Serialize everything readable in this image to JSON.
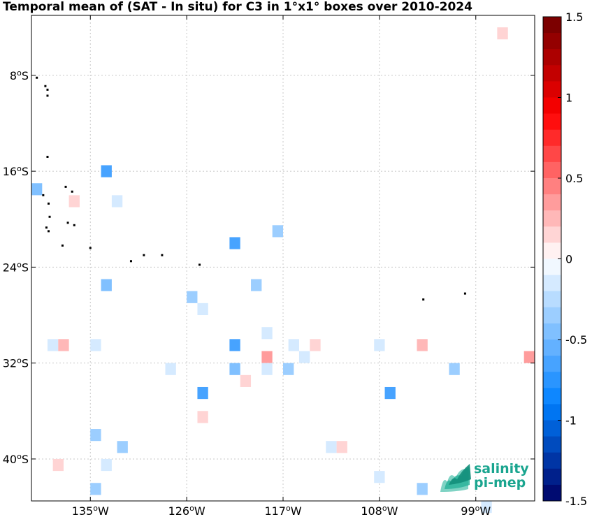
{
  "chart_data": {
    "type": "heatmap",
    "title": "Temporal mean of (SAT - In situ) for C3 in 1°x1° boxes over 2010-2024",
    "lon_range": [
      -140.5,
      -93.5
    ],
    "lat_range": [
      -43.5,
      -3.0
    ],
    "lon_ticks": [
      {
        "value": -135,
        "deg": "135",
        "dir": "W"
      },
      {
        "value": -126,
        "deg": "126",
        "dir": "W"
      },
      {
        "value": -117,
        "deg": "117",
        "dir": "W"
      },
      {
        "value": -108,
        "deg": "108",
        "dir": "W"
      },
      {
        "value": -99,
        "deg": "99",
        "dir": "W"
      }
    ],
    "lat_ticks": [
      {
        "value": -8,
        "deg": "8",
        "dir": "S"
      },
      {
        "value": -16,
        "deg": "16",
        "dir": "S"
      },
      {
        "value": -24,
        "deg": "24",
        "dir": "S"
      },
      {
        "value": -32,
        "deg": "32",
        "dir": "S"
      },
      {
        "value": -40,
        "deg": "40",
        "dir": "S"
      }
    ],
    "grid": true,
    "colorbar": {
      "min": -1.5,
      "max": 1.5,
      "levels": 30,
      "ticks": [
        {
          "value": 1.5,
          "label": "1.5"
        },
        {
          "value": 1.0,
          "label": "1"
        },
        {
          "value": 0.5,
          "label": "0.5"
        },
        {
          "value": 0.0,
          "label": "0"
        },
        {
          "value": -0.5,
          "label": "-0.5"
        },
        {
          "value": -1.0,
          "label": "-1"
        },
        {
          "value": -1.5,
          "label": "-1.5"
        }
      ]
    },
    "cells": [
      {
        "lon": -96.5,
        "lat": -4.5,
        "value": 0.15
      },
      {
        "lon": -140.0,
        "lat": -17.5,
        "value": -0.45
      },
      {
        "lon": -133.5,
        "lat": -16.0,
        "value": -0.65
      },
      {
        "lon": -136.5,
        "lat": -18.5,
        "value": 0.15
      },
      {
        "lon": -132.5,
        "lat": -18.5,
        "value": -0.1
      },
      {
        "lon": -117.5,
        "lat": -21.0,
        "value": -0.35
      },
      {
        "lon": -121.5,
        "lat": -22.0,
        "value": -0.65
      },
      {
        "lon": -133.5,
        "lat": -25.5,
        "value": -0.45
      },
      {
        "lon": -119.5,
        "lat": -25.5,
        "value": -0.35
      },
      {
        "lon": -125.5,
        "lat": -26.5,
        "value": -0.35
      },
      {
        "lon": -124.5,
        "lat": -27.5,
        "value": -0.1
      },
      {
        "lon": -118.5,
        "lat": -29.5,
        "value": -0.2
      },
      {
        "lon": -138.5,
        "lat": -30.5,
        "value": -0.1
      },
      {
        "lon": -137.5,
        "lat": -30.5,
        "value": 0.25
      },
      {
        "lon": -134.5,
        "lat": -30.5,
        "value": -0.2
      },
      {
        "lon": -121.5,
        "lat": -30.5,
        "value": -0.65
      },
      {
        "lon": -116.0,
        "lat": -30.5,
        "value": -0.1
      },
      {
        "lon": -114.0,
        "lat": -30.5,
        "value": 0.15
      },
      {
        "lon": -108.0,
        "lat": -30.5,
        "value": -0.2
      },
      {
        "lon": -104.0,
        "lat": -30.5,
        "value": 0.25
      },
      {
        "lon": -118.5,
        "lat": -31.5,
        "value": 0.3
      },
      {
        "lon": -115.0,
        "lat": -31.5,
        "value": -0.1
      },
      {
        "lon": -94.0,
        "lat": -31.5,
        "value": 0.3
      },
      {
        "lon": -127.5,
        "lat": -32.5,
        "value": -0.2
      },
      {
        "lon": -121.5,
        "lat": -32.5,
        "value": -0.45
      },
      {
        "lon": -118.5,
        "lat": -32.5,
        "value": -0.1
      },
      {
        "lon": -116.5,
        "lat": -32.5,
        "value": -0.3
      },
      {
        "lon": -101.0,
        "lat": -32.5,
        "value": -0.35
      },
      {
        "lon": -120.5,
        "lat": -33.5,
        "value": 0.15
      },
      {
        "lon": -124.5,
        "lat": -34.5,
        "value": -0.65
      },
      {
        "lon": -107.0,
        "lat": -34.5,
        "value": -0.65
      },
      {
        "lon": -124.5,
        "lat": -36.5,
        "value": 0.15
      },
      {
        "lon": -134.5,
        "lat": -38.0,
        "value": -0.35
      },
      {
        "lon": -132.0,
        "lat": -39.0,
        "value": -0.3
      },
      {
        "lon": -112.5,
        "lat": -39.0,
        "value": -0.1
      },
      {
        "lon": -111.5,
        "lat": -39.0,
        "value": 0.15
      },
      {
        "lon": -138.0,
        "lat": -40.5,
        "value": 0.15
      },
      {
        "lon": -133.5,
        "lat": -40.5,
        "value": -0.2
      },
      {
        "lon": -108.0,
        "lat": -41.5,
        "value": -0.1
      },
      {
        "lon": -134.5,
        "lat": -42.5,
        "value": -0.3
      },
      {
        "lon": -104.0,
        "lat": -42.5,
        "value": -0.3
      },
      {
        "lon": -98.0,
        "lat": -44.0,
        "value": -0.2
      }
    ],
    "islands": [
      [
        -140.0,
        -8.2
      ],
      [
        -139.2,
        -8.9
      ],
      [
        -139.0,
        -9.2
      ],
      [
        -139.0,
        -9.7
      ],
      [
        -139.0,
        -14.8
      ],
      [
        -137.3,
        -17.3
      ],
      [
        -136.7,
        -17.7
      ],
      [
        -139.4,
        -18.0
      ],
      [
        -138.9,
        -18.7
      ],
      [
        -138.8,
        -19.8
      ],
      [
        -137.1,
        -20.3
      ],
      [
        -136.5,
        -20.5
      ],
      [
        -139.1,
        -20.7
      ],
      [
        -138.9,
        -21.0
      ],
      [
        -137.6,
        -22.2
      ],
      [
        -135.0,
        -22.4
      ],
      [
        -130.0,
        -23.0
      ],
      [
        -128.3,
        -23.0
      ],
      [
        -131.2,
        -23.5
      ],
      [
        -124.8,
        -23.8
      ],
      [
        -103.9,
        -26.7
      ],
      [
        -100.0,
        -26.2
      ]
    ]
  },
  "logo": {
    "line1": "salinity",
    "line2": "pi-mep"
  }
}
